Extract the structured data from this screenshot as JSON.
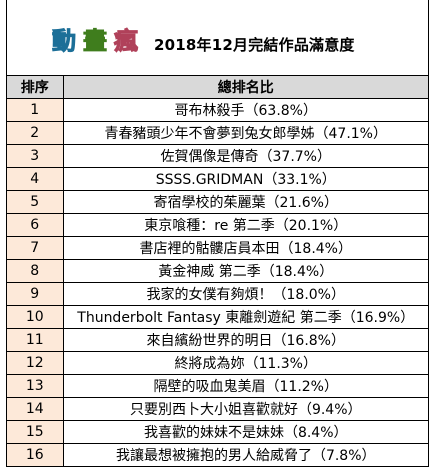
{
  "header": {
    "logo_chars": [
      "動",
      "畫",
      "瘋"
    ],
    "title": "2018年12月完結作品滿意度"
  },
  "table": {
    "columns": [
      "排序",
      "總排名比"
    ],
    "rows": [
      {
        "rank": "1",
        "name": "哥布林殺手（63.8%）"
      },
      {
        "rank": "2",
        "name": "青春豬頭少年不會夢到兔女郎學姊（47.1%）"
      },
      {
        "rank": "3",
        "name": "佐賀偶像是傳奇（37.7%）"
      },
      {
        "rank": "4",
        "name": "SSSS.GRIDMAN（33.1%）"
      },
      {
        "rank": "5",
        "name": "寄宿學校的茱麗葉（21.6%）"
      },
      {
        "rank": "6",
        "name": "東京喰種：re 第二季（20.1%）"
      },
      {
        "rank": "7",
        "name": "書店裡的骷髏店員本田（18.4%）"
      },
      {
        "rank": "8",
        "name": "黃金神威 第二季（18.4%）"
      },
      {
        "rank": "9",
        "name": "我家的女僕有夠煩！（18.0%）"
      },
      {
        "rank": "10",
        "name": "Thunderbolt Fantasy 東離劍遊紀 第二季（16.9%）"
      },
      {
        "rank": "11",
        "name": "來自繽紛世界的明日（16.8%）"
      },
      {
        "rank": "12",
        "name": "終將成為妳（11.3%）"
      },
      {
        "rank": "13",
        "name": "隔壁的吸血鬼美眉（11.2%）"
      },
      {
        "rank": "14",
        "name": "只要別西卜大小姐喜歡就好（9.4%）"
      },
      {
        "rank": "15",
        "name": "我喜歡的妹妹不是妹妹（8.4%）"
      },
      {
        "rank": "16",
        "name": "我讓最想被擁抱的男人給威脅了（7.8%）"
      }
    ]
  }
}
